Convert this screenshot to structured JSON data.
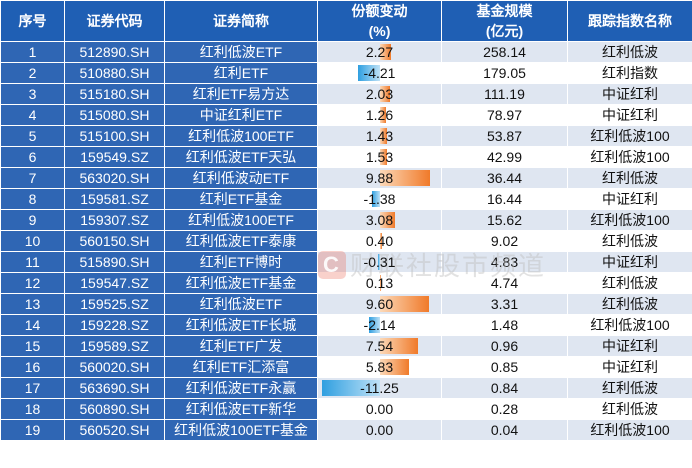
{
  "header": {
    "idx": "序号",
    "code": "证券代码",
    "name": "证券简称",
    "chg_line1": "份额变动",
    "chg_line2": "(%)",
    "size_line1": "基金规模",
    "size_line2": "(亿元)",
    "track": "跟踪指数名称"
  },
  "colors": {
    "header_bg": "#1f5fb4",
    "left_cell_bg": "#2f66b4",
    "stripe_bg": "#dfe6f1",
    "positive_bar": "#f07a2a",
    "negative_bar": "#2f9fe0"
  },
  "bar_scale_max": 12,
  "watermark": {
    "text": "财联社股市频道"
  },
  "rows": [
    {
      "idx": "1",
      "code": "512890.SH",
      "name": "红利低波ETF",
      "chg": "2.27",
      "size": "258.14",
      "track": "红利低波"
    },
    {
      "idx": "2",
      "code": "510880.SH",
      "name": "红利ETF",
      "chg": "-4.21",
      "size": "179.05",
      "track": "红利指数"
    },
    {
      "idx": "3",
      "code": "515180.SH",
      "name": "红利ETF易方达",
      "chg": "2.03",
      "size": "111.19",
      "track": "中证红利"
    },
    {
      "idx": "4",
      "code": "515080.SH",
      "name": "中证红利ETF",
      "chg": "1.26",
      "size": "78.97",
      "track": "中证红利"
    },
    {
      "idx": "5",
      "code": "515100.SH",
      "name": "红利低波100ETF",
      "chg": "1.43",
      "size": "53.87",
      "track": "红利低波100"
    },
    {
      "idx": "6",
      "code": "159549.SZ",
      "name": "红利低波ETF天弘",
      "chg": "1.53",
      "size": "42.99",
      "track": "红利低波100"
    },
    {
      "idx": "7",
      "code": "563020.SH",
      "name": "红利低波动ETF",
      "chg": "9.88",
      "size": "36.44",
      "track": "红利低波"
    },
    {
      "idx": "8",
      "code": "159581.SZ",
      "name": "红利ETF基金",
      "chg": "-1.38",
      "size": "16.44",
      "track": "中证红利"
    },
    {
      "idx": "9",
      "code": "159307.SZ",
      "name": "红利低波100ETF",
      "chg": "3.08",
      "size": "15.62",
      "track": "红利低波100"
    },
    {
      "idx": "10",
      "code": "560150.SH",
      "name": "红利低波ETF泰康",
      "chg": "0.40",
      "size": "9.02",
      "track": "红利低波"
    },
    {
      "idx": "11",
      "code": "515890.SH",
      "name": "红利ETF博时",
      "chg": "-0.31",
      "size": "4.83",
      "track": "中证红利"
    },
    {
      "idx": "12",
      "code": "159547.SZ",
      "name": "红利低波ETF基金",
      "chg": "0.13",
      "size": "4.74",
      "track": "红利低波"
    },
    {
      "idx": "13",
      "code": "159525.SZ",
      "name": "红利低波ETF",
      "chg": "9.60",
      "size": "3.31",
      "track": "红利低波"
    },
    {
      "idx": "14",
      "code": "159228.SZ",
      "name": "红利低波ETF长城",
      "chg": "-2.14",
      "size": "1.48",
      "track": "红利低波100"
    },
    {
      "idx": "15",
      "code": "159589.SZ",
      "name": "红利ETF广发",
      "chg": "7.54",
      "size": "0.96",
      "track": "中证红利"
    },
    {
      "idx": "16",
      "code": "560020.SH",
      "name": "红利ETF汇添富",
      "chg": "5.83",
      "size": "0.85",
      "track": "中证红利"
    },
    {
      "idx": "17",
      "code": "563690.SH",
      "name": "红利低波ETF永赢",
      "chg": "-11.25",
      "size": "0.84",
      "track": "红利低波"
    },
    {
      "idx": "18",
      "code": "560890.SH",
      "name": "红利低波ETF新华",
      "chg": "0.00",
      "size": "0.28",
      "track": "红利低波"
    },
    {
      "idx": "19",
      "code": "560520.SH",
      "name": "红利低波100ETF基金",
      "chg": "0.00",
      "size": "0.04",
      "track": "红利低波100"
    }
  ]
}
